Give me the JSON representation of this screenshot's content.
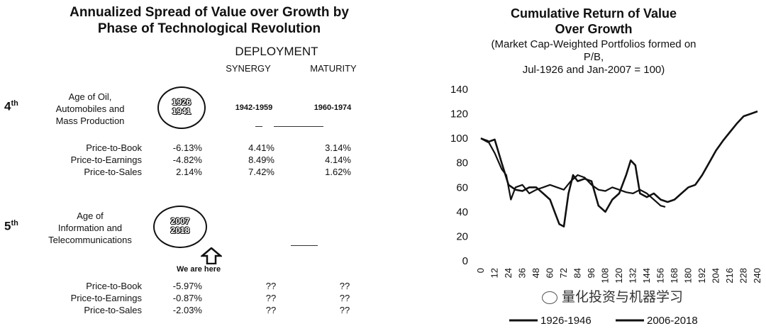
{
  "left": {
    "title_line1": "Annualized Spread of Value over Growth by",
    "title_line2": "Phase of Technological Revolution",
    "phase": "DEPLOYMENT",
    "columns": [
      "SYNERGY",
      "MATURITY"
    ],
    "revolutions": [
      {
        "generation": "4",
        "generation_suffix": "th",
        "age_lines": [
          "Age of Oil,",
          "Automobiles and",
          "Mass Production"
        ],
        "circle_years": [
          "1926",
          "1941"
        ],
        "synergy_years": "1942-1959",
        "maturity_years": "1960-1974",
        "rows": [
          {
            "metric": "Price-to-Book",
            "installation": "-6.13%",
            "synergy": "4.41%",
            "maturity": "3.14%"
          },
          {
            "metric": "Price-to-Earnings",
            "installation": "-4.82%",
            "synergy": "8.49%",
            "maturity": "4.14%"
          },
          {
            "metric": "Price-to-Sales",
            "installation": "2.14%",
            "synergy": "7.42%",
            "maturity": "1.62%"
          }
        ]
      },
      {
        "generation": "5",
        "generation_suffix": "th",
        "age_lines": [
          "Age of",
          "Information and",
          "Telecommunications"
        ],
        "circle_years": [
          "2007",
          "2018"
        ],
        "here_label": "We are here",
        "rows": [
          {
            "metric": "Price-to-Book",
            "installation": "-5.97%",
            "synergy": "??",
            "maturity": "??"
          },
          {
            "metric": "Price-to-Earnings",
            "installation": "-0.87%",
            "synergy": "??",
            "maturity": "??"
          },
          {
            "metric": "Price-to-Sales",
            "installation": "-2.03%",
            "synergy": "??",
            "maturity": "??"
          }
        ]
      }
    ]
  },
  "chart_data": {
    "type": "line",
    "title": "Cumulative Return of Value Over Growth",
    "title_line1": "Cumulative Return of Value",
    "title_line2": "Over Growth",
    "subtitle_line1": "(Market Cap-Weighted Portfolios formed on",
    "subtitle_line2": "P/B,",
    "subtitle_line3": "Jul-1926 and Jan-2007 = 100)",
    "ylim": [
      0,
      140
    ],
    "yticks": [
      0,
      20,
      40,
      60,
      80,
      100,
      120,
      140
    ],
    "xlim": [
      0,
      240
    ],
    "xticks": [
      0,
      12,
      24,
      36,
      48,
      60,
      72,
      84,
      96,
      108,
      120,
      132,
      144,
      156,
      168,
      180,
      192,
      204,
      216,
      228,
      240
    ],
    "grid": false,
    "legend_position": "bottom",
    "series": [
      {
        "name": "1926-1946",
        "x": [
          0,
          6,
          12,
          18,
          24,
          30,
          36,
          42,
          48,
          54,
          60,
          64,
          68,
          72,
          76,
          80,
          84,
          90,
          96,
          102,
          108,
          114,
          120,
          126,
          130,
          134,
          138,
          144,
          150,
          156,
          162,
          168,
          174,
          180,
          186,
          192,
          198,
          204,
          210,
          216,
          222,
          228,
          234,
          240
        ],
        "y": [
          100,
          97,
          99,
          80,
          62,
          58,
          57,
          60,
          60,
          55,
          50,
          40,
          30,
          28,
          55,
          70,
          65,
          67,
          65,
          45,
          40,
          50,
          55,
          70,
          82,
          78,
          55,
          52,
          55,
          50,
          48,
          50,
          55,
          60,
          62,
          70,
          80,
          90,
          98,
          105,
          112,
          118,
          120,
          122
        ]
      },
      {
        "name": "2006-2018",
        "x": [
          0,
          6,
          12,
          18,
          22,
          26,
          30,
          36,
          42,
          48,
          54,
          60,
          66,
          72,
          78,
          84,
          90,
          96,
          102,
          108,
          114,
          120,
          126,
          132,
          138,
          144,
          150,
          156,
          160
        ],
        "y": [
          100,
          98,
          88,
          75,
          70,
          50,
          60,
          62,
          55,
          58,
          60,
          62,
          60,
          58,
          65,
          70,
          68,
          62,
          58,
          57,
          60,
          58,
          56,
          55,
          58,
          55,
          50,
          45,
          44
        ]
      }
    ]
  },
  "watermark": "量化投资与机器学习"
}
